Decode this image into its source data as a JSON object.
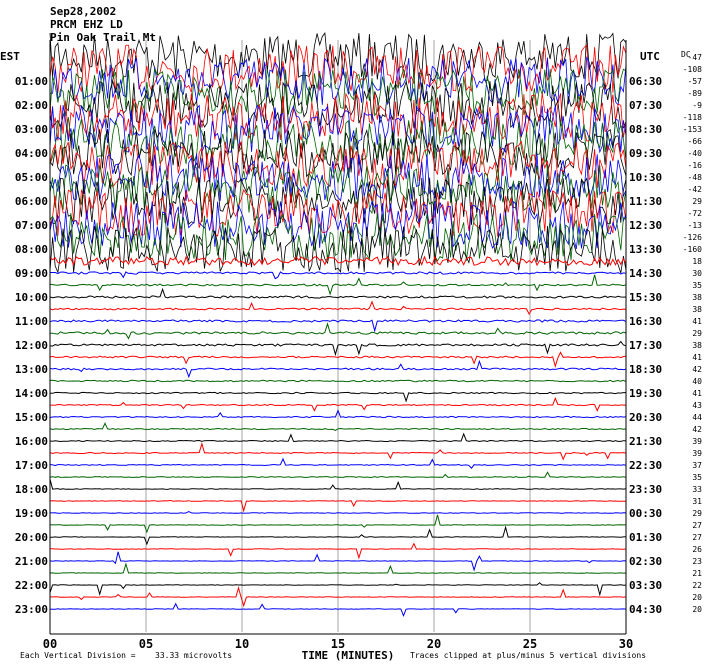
{
  "header": {
    "date": "Sep28,2002",
    "station": "PRCM EHZ LD",
    "network": "Pin Oak Trail Mt",
    "left_zone": "EST",
    "right_zone": "UTC",
    "dc_label": "DC"
  },
  "footer": {
    "corner_mark": "",
    "division_text": "Each Vertical Division =",
    "division_value": "33.33 microvolts",
    "xlabel": "TIME (MINUTES)",
    "clip_note": "Traces clipped at plus/minus 5 vertical divisions"
  },
  "colors": {
    "trace_cycle": [
      "#000000",
      "#ff0000",
      "#0000ff",
      "#006400"
    ],
    "grid": "#808080"
  },
  "chart_data": {
    "type": "line",
    "title": "Sep28,2002",
    "xlabel": "TIME (MINUTES)",
    "x_ticks": [
      "00",
      "05",
      "10",
      "15",
      "20",
      "25",
      "30"
    ],
    "xlim": [
      0,
      30
    ],
    "left_hour_labels": [
      "01:00",
      "02:00",
      "03:00",
      "04:00",
      "05:00",
      "06:00",
      "07:00",
      "08:00",
      "09:00",
      "10:00",
      "11:00",
      "12:00",
      "13:00",
      "14:00",
      "15:00",
      "16:00",
      "17:00",
      "18:00",
      "19:00",
      "20:00",
      "21:00",
      "22:00",
      "23:00"
    ],
    "right_hour_labels": [
      "06:30",
      "07:30",
      "08:30",
      "09:30",
      "10:30",
      "11:30",
      "12:30",
      "13:30",
      "14:30",
      "15:30",
      "16:30",
      "17:30",
      "18:30",
      "19:30",
      "20:30",
      "21:30",
      "22:30",
      "23:30",
      "00:30",
      "01:30",
      "02:30",
      "03:30",
      "04:30"
    ],
    "dc_offsets": [
      -47,
      -108,
      -57,
      -89,
      -9,
      -118,
      -153,
      -66,
      -40,
      -16,
      -48,
      -42,
      29,
      -72,
      -13,
      -126,
      -160,
      18,
      30,
      35,
      38,
      38,
      41,
      29,
      38,
      41,
      42,
      40,
      41,
      43,
      44,
      42,
      39,
      39,
      37,
      35,
      33,
      31,
      29,
      27,
      27,
      26,
      23,
      21,
      22,
      20,
      20
    ],
    "trace_amplitude_divisions": [
      40,
      40,
      40,
      40,
      40,
      40,
      40,
      40,
      40,
      40,
      40,
      40,
      40,
      40,
      40,
      40,
      40,
      7,
      1.8,
      1.5,
      1.8,
      1.4,
      1.8,
      2,
      1.8,
      1.4,
      1.4,
      1.2,
      1.1,
      1,
      1,
      0.9,
      0.9,
      0.9,
      0.8,
      0.7,
      0.6,
      0.5,
      0.5,
      0.4,
      0.4,
      0.4,
      0.4,
      0.4,
      0.4,
      0.4,
      0.4
    ]
  }
}
